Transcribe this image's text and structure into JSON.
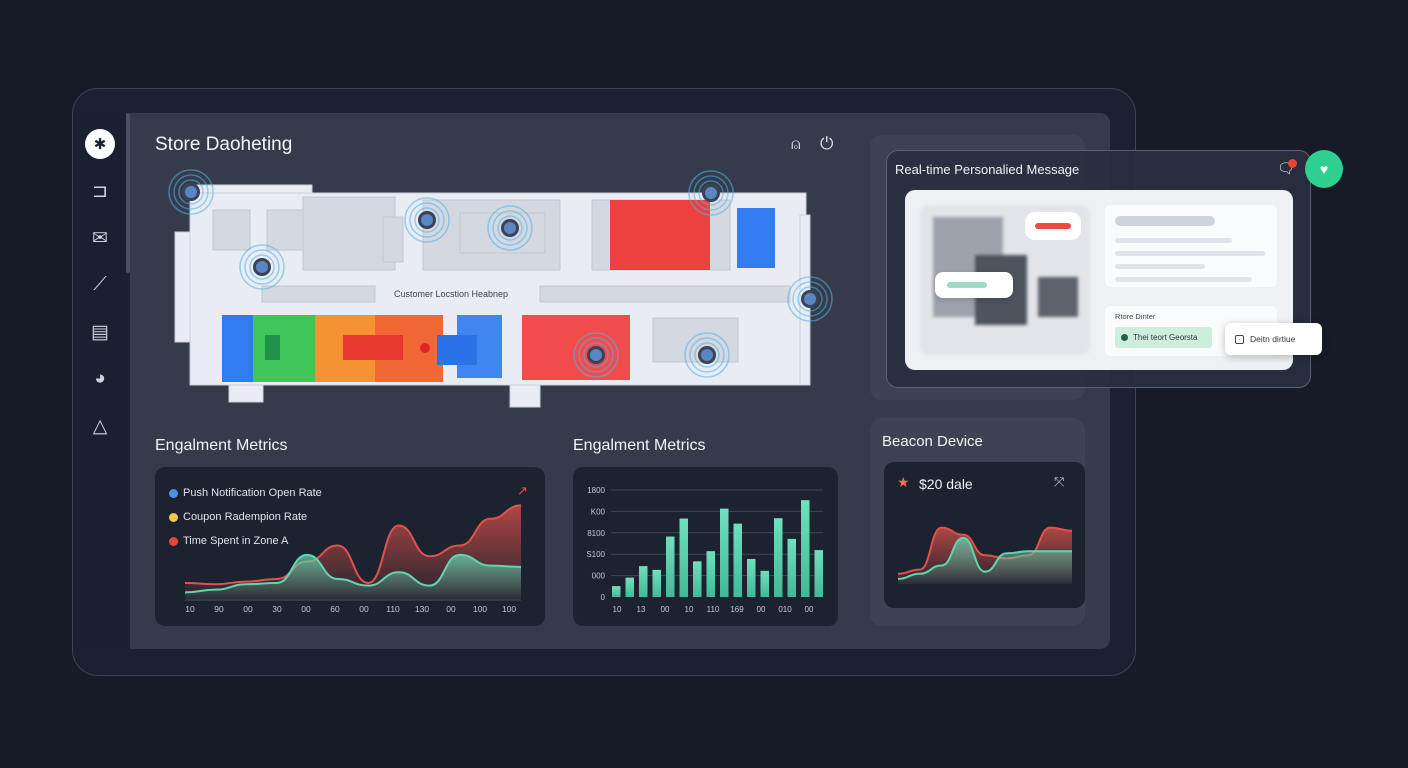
{
  "sidebar": {
    "items": [
      {
        "icon": "bluetooth-icon",
        "glyph": "✱"
      },
      {
        "icon": "layout-icon",
        "glyph": "⊐"
      },
      {
        "icon": "mail-icon",
        "glyph": "✉"
      },
      {
        "icon": "wand-icon",
        "glyph": "⟋"
      },
      {
        "icon": "clipboard-icon",
        "glyph": "▤"
      },
      {
        "icon": "pie-chart-icon",
        "glyph": "◕"
      },
      {
        "icon": "beacon-icon",
        "glyph": "△"
      }
    ]
  },
  "header": {
    "title": "Store Daoheting",
    "icons": [
      "user-icon",
      "power-icon"
    ]
  },
  "map": {
    "label": "Customer Locstion Heabnep"
  },
  "engagement1": {
    "title": "Engalment Metrics",
    "legend": [
      {
        "label": "Push Notification Open Rate",
        "color": "#4f8fe8"
      },
      {
        "label": "Coupon Radempion Rate",
        "color": "#f1c94a"
      },
      {
        "label": "Time Spent in Zone A",
        "color": "#e5473e"
      }
    ],
    "x_labels": [
      "10",
      "90",
      "00",
      "30",
      "00",
      "60",
      "00",
      "110",
      "130",
      "00",
      "100",
      "100"
    ]
  },
  "engagement2": {
    "title": "Engalment Metrics"
  },
  "message": {
    "title": "Real-time Personalied Message",
    "section_label": "Rtore Dinter",
    "green_button": "Thei teort Georsta",
    "white_button": "Deitn dirtiue"
  },
  "beacon": {
    "title": "Beacon Device",
    "value": "$20 dale"
  },
  "colors": {
    "accent_green": "#2fd08f",
    "teal": "#5fd6b0",
    "red": "#e0524a",
    "panel": "#353b4a"
  },
  "chart_data": [
    {
      "type": "area",
      "series": [
        {
          "color": "#e0524a",
          "values": [
            12,
            11,
            13,
            15,
            28,
            40,
            12,
            55,
            32,
            40,
            60,
            70
          ]
        },
        {
          "color": "#5fd6b0",
          "values": [
            5,
            7,
            11,
            12,
            33,
            15,
            10,
            20,
            10,
            33,
            25,
            24
          ]
        }
      ],
      "x_labels": [
        "10",
        "90",
        "00",
        "30",
        "00",
        "60",
        "00",
        "110",
        "130",
        "00",
        "100",
        "100"
      ],
      "ylim": [
        0,
        80
      ]
    },
    {
      "type": "bar",
      "y_labels": [
        "1800",
        "K00",
        "8100",
        "S100",
        "000",
        "0"
      ],
      "ylim": [
        0,
        1800
      ],
      "values": [
        183,
        326,
        520,
        457,
        1017,
        1320,
        600,
        771,
        1486,
        1234,
        640,
        440,
        1326,
        977,
        1629,
        789
      ],
      "x_labels": [
        "10",
        "13",
        "00",
        "10",
        "110",
        "169",
        "00",
        "010",
        "00"
      ],
      "grid": true
    },
    {
      "type": "area",
      "series": [
        {
          "color": "#e0524a",
          "values": [
            10,
            14,
            55,
            48,
            28,
            25,
            28,
            55,
            52
          ]
        },
        {
          "color": "#5fd6b0",
          "values": [
            5,
            10,
            18,
            45,
            12,
            30,
            32,
            32,
            32
          ]
        }
      ],
      "ylim": [
        0,
        80
      ]
    }
  ]
}
